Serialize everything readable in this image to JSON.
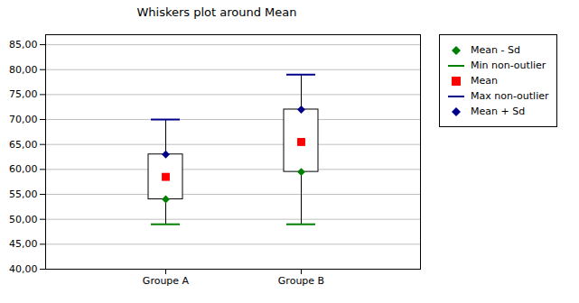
{
  "chart_data": {
    "type": "box",
    "title": "Whiskers plot around Mean",
    "categories": [
      "Groupe A",
      "Groupe B"
    ],
    "series": [
      {
        "name": "Mean - Sd",
        "color": "#008000",
        "marker": "diamond",
        "values": [
          54.0,
          59.5
        ]
      },
      {
        "name": "Min non-outlier",
        "color": "#008000",
        "marker": "cap",
        "values": [
          49.0,
          49.0
        ]
      },
      {
        "name": "Mean",
        "color": "#FF0000",
        "marker": "square",
        "values": [
          58.5,
          65.5
        ]
      },
      {
        "name": "Max non-outlier",
        "color": "#00008B",
        "marker": "cap",
        "values": [
          70.0,
          79.0
        ]
      },
      {
        "name": "Mean + Sd",
        "color": "#00008B",
        "marker": "diamond",
        "values": [
          63.0,
          72.0
        ]
      }
    ],
    "ylim": [
      40,
      87
    ],
    "yticks": [
      {
        "value": 40,
        "label": "40,00"
      },
      {
        "value": 45,
        "label": "45,00"
      },
      {
        "value": 50,
        "label": "50,00"
      },
      {
        "value": 55,
        "label": "55,00"
      },
      {
        "value": 60,
        "label": "60,00"
      },
      {
        "value": 65,
        "label": "65,00"
      },
      {
        "value": 70,
        "label": "70,00"
      },
      {
        "value": 75,
        "label": "75,00"
      },
      {
        "value": 80,
        "label": "80,00"
      },
      {
        "value": 85,
        "label": "85,00"
      }
    ],
    "grid": true,
    "legend": "right"
  }
}
